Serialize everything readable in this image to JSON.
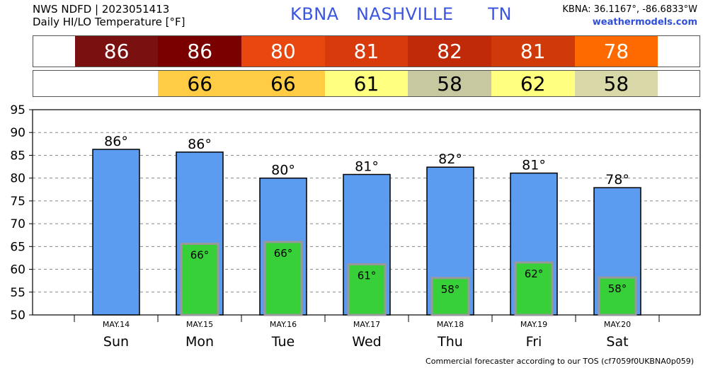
{
  "header": {
    "line1": "NWS NDFD | 2023051413",
    "line2": "Daily HI/LO Temperature [°F]",
    "station": "KBNA   NASHVILLE      TN",
    "coords": "KBNA: 36.1167°, -86.6833°W",
    "site": "weathermodels.com"
  },
  "hi_strip": {
    "values": [
      "86",
      "86",
      "80",
      "81",
      "82",
      "81",
      "78"
    ],
    "colors": [
      "#7a1010",
      "#7a0000",
      "#e8470f",
      "#d83a0c",
      "#c02a08",
      "#d03a0a",
      "#ff6a00"
    ]
  },
  "lo_strip": {
    "values": [
      "66",
      "66",
      "61",
      "58",
      "62",
      "58"
    ],
    "colors": [
      "#ffcc44",
      "#ffcc44",
      "#ffff80",
      "#c8c8a0",
      "#ffff80",
      "#d8d8a8"
    ]
  },
  "footer": "Commercial forecaster according to our TOS (cf7059f0UKBNA0p059)",
  "chart_data": {
    "type": "bar",
    "categories": [
      "Sun",
      "Mon",
      "Tue",
      "Wed",
      "Thu",
      "Fri",
      "Sat"
    ],
    "dates": [
      "MAY.14",
      "MAY.15",
      "MAY.16",
      "MAY.17",
      "MAY.18",
      "MAY.19",
      "MAY.20"
    ],
    "series": [
      {
        "values": [
          86.3,
          85.7,
          80.0,
          80.8,
          82.4,
          81.1,
          77.9
        ],
        "labels": [
          "86°",
          "86°",
          "80°",
          "81°",
          "82°",
          "81°",
          "78°"
        ],
        "color": "#5b9cf0"
      },
      {
        "values": [
          null,
          65.6,
          66.0,
          61.1,
          58.1,
          61.5,
          58.2
        ],
        "labels": [
          "",
          "66°",
          "66°",
          "61°",
          "58°",
          "62°",
          "58°"
        ],
        "color": "#38d038"
      }
    ],
    "ylim": [
      50,
      95
    ],
    "yticks": [
      "50",
      "55",
      "60",
      "65",
      "70",
      "75",
      "80",
      "85",
      "90",
      "95"
    ],
    "grid": true
  }
}
